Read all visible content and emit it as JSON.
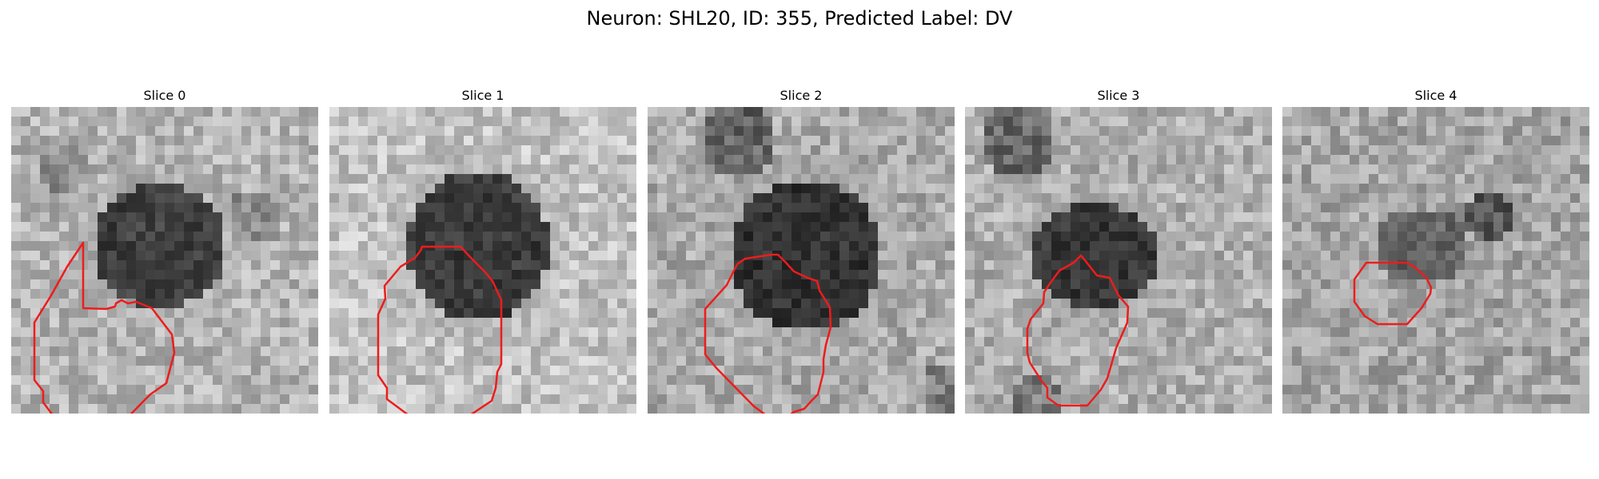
{
  "figure": {
    "title": "Neuron: SHL20, ID: 355, Predicted Label: DV",
    "contour_color": "#ee1c1c"
  },
  "panels": [
    {
      "title": "Slice 0"
    },
    {
      "title": "Slice 1"
    },
    {
      "title": "Slice 2"
    },
    {
      "title": "Slice 3"
    },
    {
      "title": "Slice 4"
    }
  ]
}
